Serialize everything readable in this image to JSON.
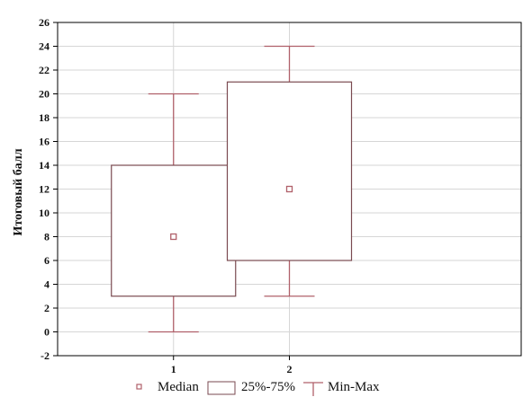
{
  "chart_data": {
    "type": "box",
    "title": "",
    "xlabel": "",
    "ylabel": "Итоговый балл",
    "categories": [
      "1",
      "2"
    ],
    "ylim": [
      -2,
      26
    ],
    "yticks": [
      -2,
      0,
      2,
      4,
      6,
      8,
      10,
      12,
      14,
      16,
      18,
      20,
      22,
      24,
      26
    ],
    "grid": true,
    "legend_position": "bottom",
    "boxes": [
      {
        "category": "1",
        "min": 0,
        "q1": 3,
        "median": 8,
        "q3": 14,
        "max": 20
      },
      {
        "category": "2",
        "min": 3,
        "q1": 6,
        "median": 12,
        "q3": 21,
        "max": 24
      }
    ],
    "legend": {
      "median": "Median",
      "box": "25%-75%",
      "whisker": "Min-Max"
    },
    "colors": {
      "whisker": "#b0606a",
      "median_marker": "#b0606a",
      "box_edge": "#7a4a50",
      "grid": "#d6d6d6",
      "axis": "#000000"
    }
  }
}
